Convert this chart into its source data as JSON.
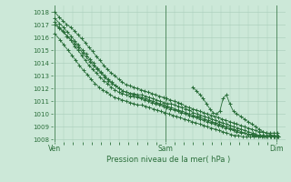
{
  "bg_color": "#cce8d8",
  "grid_color": "#a8ccb8",
  "line_color": "#2a6e3a",
  "xlabel": "Pression niveau de la mer( hPa )",
  "yticks": [
    1008,
    1009,
    1010,
    1011,
    1012,
    1013,
    1014,
    1015,
    1016,
    1017,
    1018
  ],
  "ylim": [
    1007.8,
    1018.5
  ],
  "xtick_labels": [
    "Ven",
    "Sam",
    "Dim"
  ],
  "xtick_positions": [
    0.0,
    0.5,
    1.0
  ],
  "xlim": [
    -0.01,
    1.04
  ],
  "lines": [
    {
      "x": [
        0.0,
        0.02,
        0.038,
        0.055,
        0.072,
        0.09,
        0.105,
        0.122,
        0.138,
        0.155,
        0.172,
        0.188,
        0.205,
        0.222,
        0.238,
        0.255,
        0.272,
        0.29,
        0.305,
        0.322,
        0.34,
        0.356,
        0.372,
        0.39,
        0.406,
        0.422,
        0.44,
        0.456,
        0.472,
        0.49,
        0.506,
        0.522,
        0.54,
        0.556,
        0.572,
        0.59,
        0.606,
        0.622,
        0.64,
        0.656,
        0.672,
        0.69,
        0.706,
        0.722,
        0.74,
        0.756,
        0.772,
        0.79,
        0.806,
        0.822,
        0.84,
        0.856,
        0.872,
        0.89,
        0.906,
        0.922,
        0.94,
        0.956,
        0.972,
        0.99,
        1.006
      ],
      "y": [
        1018.0,
        1017.6,
        1017.3,
        1017.0,
        1016.8,
        1016.5,
        1016.2,
        1015.9,
        1015.6,
        1015.2,
        1014.9,
        1014.5,
        1014.2,
        1013.8,
        1013.5,
        1013.2,
        1013.0,
        1012.7,
        1012.5,
        1012.3,
        1012.2,
        1012.1,
        1012.0,
        1011.9,
        1011.8,
        1011.7,
        1011.6,
        1011.5,
        1011.4,
        1011.3,
        1011.2,
        1011.1,
        1011.0,
        1010.9,
        1010.8,
        1010.6,
        1010.5,
        1010.4,
        1010.3,
        1010.2,
        1010.1,
        1010.0,
        1009.9,
        1009.8,
        1009.7,
        1009.6,
        1009.5,
        1009.4,
        1009.3,
        1009.2,
        1009.1,
        1009.0,
        1008.9,
        1008.8,
        1008.7,
        1008.6,
        1008.6,
        1008.5,
        1008.5,
        1008.5,
        1008.5
      ]
    },
    {
      "x": [
        0.0,
        0.022,
        0.04,
        0.058,
        0.075,
        0.092,
        0.108,
        0.125,
        0.142,
        0.158,
        0.175,
        0.192,
        0.208,
        0.225,
        0.242,
        0.258,
        0.275,
        0.292,
        0.308,
        0.325,
        0.342,
        0.358,
        0.375,
        0.392,
        0.408,
        0.425,
        0.442,
        0.458,
        0.475,
        0.492,
        0.508,
        0.525,
        0.542,
        0.558,
        0.575,
        0.592,
        0.608,
        0.625,
        0.642,
        0.658,
        0.675,
        0.692,
        0.708,
        0.725,
        0.742,
        0.758,
        0.775,
        0.792,
        0.808,
        0.825,
        0.842,
        0.858,
        0.875,
        0.892,
        0.908,
        0.925,
        0.942,
        0.958,
        0.975,
        0.992,
        1.008
      ],
      "y": [
        1017.0,
        1016.7,
        1016.4,
        1016.1,
        1015.8,
        1015.5,
        1015.2,
        1014.8,
        1014.5,
        1014.1,
        1013.8,
        1013.5,
        1013.2,
        1012.9,
        1012.6,
        1012.4,
        1012.2,
        1012.0,
        1011.8,
        1011.7,
        1011.6,
        1011.6,
        1011.5,
        1011.5,
        1011.4,
        1011.3,
        1011.2,
        1011.1,
        1011.0,
        1010.9,
        1010.8,
        1010.8,
        1010.7,
        1010.6,
        1010.5,
        1010.4,
        1010.3,
        1010.1,
        1010.0,
        1009.9,
        1009.8,
        1009.7,
        1009.6,
        1009.5,
        1009.4,
        1009.3,
        1009.2,
        1009.1,
        1009.0,
        1008.9,
        1008.8,
        1008.7,
        1008.6,
        1008.5,
        1008.4,
        1008.3,
        1008.2,
        1008.2,
        1008.2,
        1008.2,
        1008.2
      ]
    },
    {
      "x": [
        0.0,
        0.022,
        0.04,
        0.058,
        0.075,
        0.092,
        0.108,
        0.125,
        0.142,
        0.158,
        0.175,
        0.192,
        0.208,
        0.225,
        0.242,
        0.258,
        0.275,
        0.292,
        0.308,
        0.325,
        0.342,
        0.358,
        0.375,
        0.392,
        0.408,
        0.425,
        0.442,
        0.458,
        0.475,
        0.492,
        0.508,
        0.525,
        0.542,
        0.558,
        0.575,
        0.592,
        0.608,
        0.625,
        0.642,
        0.658,
        0.675,
        0.692,
        0.708,
        0.725,
        0.742,
        0.758,
        0.775,
        0.792,
        0.808,
        0.825,
        0.842,
        0.858,
        0.875,
        0.892,
        0.908,
        0.925,
        0.942,
        0.958,
        0.975,
        0.992,
        1.008
      ],
      "y": [
        1017.5,
        1017.1,
        1016.8,
        1016.4,
        1016.1,
        1015.7,
        1015.4,
        1015.0,
        1014.7,
        1014.3,
        1014.0,
        1013.6,
        1013.3,
        1013.0,
        1012.7,
        1012.5,
        1012.2,
        1012.0,
        1011.8,
        1011.7,
        1011.6,
        1011.5,
        1011.4,
        1011.3,
        1011.2,
        1011.1,
        1011.0,
        1010.9,
        1010.8,
        1010.7,
        1010.6,
        1010.5,
        1010.4,
        1010.3,
        1010.2,
        1010.1,
        1010.0,
        1009.9,
        1009.8,
        1009.7,
        1009.6,
        1009.5,
        1009.4,
        1009.3,
        1009.2,
        1009.1,
        1009.0,
        1008.9,
        1008.8,
        1008.7,
        1008.6,
        1008.5,
        1008.4,
        1008.4,
        1008.3,
        1008.3,
        1008.3,
        1008.2,
        1008.2,
        1008.2,
        1008.2
      ]
    },
    {
      "x": [
        0.0,
        0.025,
        0.042,
        0.06,
        0.078,
        0.095,
        0.112,
        0.13,
        0.147,
        0.165,
        0.182,
        0.2,
        0.217,
        0.235,
        0.252,
        0.27,
        0.287,
        0.305,
        0.322,
        0.34,
        0.357,
        0.375,
        0.392,
        0.41,
        0.427,
        0.445,
        0.462,
        0.48,
        0.497,
        0.515,
        0.532,
        0.55,
        0.567,
        0.585,
        0.602,
        0.62,
        0.637,
        0.655,
        0.672,
        0.69,
        0.707,
        0.725,
        0.742,
        0.76,
        0.777,
        0.795,
        0.812,
        0.83,
        0.847,
        0.865,
        0.882,
        0.9,
        0.917,
        0.935,
        0.952,
        0.97,
        0.987,
        1.0
      ],
      "y": [
        1016.3,
        1015.8,
        1015.4,
        1015.0,
        1014.6,
        1014.2,
        1013.8,
        1013.4,
        1013.1,
        1012.7,
        1012.4,
        1012.1,
        1011.9,
        1011.7,
        1011.5,
        1011.3,
        1011.2,
        1011.1,
        1011.0,
        1010.9,
        1010.8,
        1010.7,
        1010.7,
        1010.6,
        1010.5,
        1010.4,
        1010.3,
        1010.2,
        1010.1,
        1010.0,
        1009.9,
        1009.8,
        1009.7,
        1009.6,
        1009.5,
        1009.4,
        1009.3,
        1009.2,
        1009.1,
        1009.0,
        1008.9,
        1008.8,
        1008.7,
        1008.6,
        1008.5,
        1008.4,
        1008.3,
        1008.3,
        1008.2,
        1008.2,
        1008.2,
        1008.2,
        1008.2,
        1008.2,
        1008.2,
        1008.2,
        1008.2,
        1008.2
      ]
    },
    {
      "x": [
        0.0,
        0.02,
        0.038,
        0.055,
        0.072,
        0.09,
        0.105,
        0.122,
        0.138,
        0.155,
        0.172,
        0.188,
        0.205,
        0.222,
        0.238,
        0.255,
        0.272,
        0.29,
        0.305,
        0.322,
        0.34,
        0.356,
        0.372,
        0.39,
        0.406,
        0.422,
        0.44,
        0.456,
        0.472,
        0.49,
        0.506,
        0.522,
        0.54,
        0.556,
        0.572,
        0.59,
        0.606,
        0.622,
        0.64,
        0.656,
        0.672,
        0.69,
        0.706,
        0.722,
        0.74,
        0.756,
        0.772,
        0.79,
        0.806,
        0.822,
        0.84,
        0.856,
        0.872,
        0.89,
        0.906,
        0.922,
        0.94,
        0.956,
        0.972,
        0.99,
        1.006
      ],
      "y": [
        1017.2,
        1016.8,
        1016.5,
        1016.1,
        1015.8,
        1015.3,
        1015.0,
        1014.6,
        1014.2,
        1013.8,
        1013.5,
        1013.2,
        1012.9,
        1012.6,
        1012.4,
        1012.1,
        1011.9,
        1011.7,
        1011.6,
        1011.5,
        1011.4,
        1011.4,
        1011.3,
        1011.2,
        1011.1,
        1011.0,
        1010.9,
        1010.8,
        1010.7,
        1010.6,
        1010.5,
        1010.4,
        1010.3,
        1010.2,
        1010.1,
        1010.0,
        1009.9,
        1009.8,
        1009.7,
        1009.6,
        1009.5,
        1009.4,
        1009.3,
        1009.2,
        1009.1,
        1009.0,
        1008.9,
        1008.8,
        1008.7,
        1008.6,
        1008.5,
        1008.5,
        1008.4,
        1008.4,
        1008.4,
        1008.3,
        1008.3,
        1008.3,
        1008.3,
        1008.2,
        1008.2
      ]
    }
  ],
  "spike_x": [
    0.622,
    0.64,
    0.656,
    0.67,
    0.685,
    0.7,
    0.715,
    0.73,
    0.745,
    0.76,
    0.775,
    0.79,
    0.806,
    0.822,
    0.84,
    0.856,
    0.872,
    0.89,
    0.906,
    0.922,
    0.94,
    0.956,
    0.972,
    0.99,
    1.006
  ],
  "spike_y": [
    1012.1,
    1011.8,
    1011.5,
    1011.2,
    1010.8,
    1010.4,
    1010.1,
    1010.0,
    1010.2,
    1011.2,
    1011.5,
    1010.8,
    1010.2,
    1010.0,
    1009.8,
    1009.6,
    1009.4,
    1009.2,
    1009.0,
    1008.8,
    1008.6,
    1008.5,
    1008.4,
    1008.3,
    1008.3
  ]
}
